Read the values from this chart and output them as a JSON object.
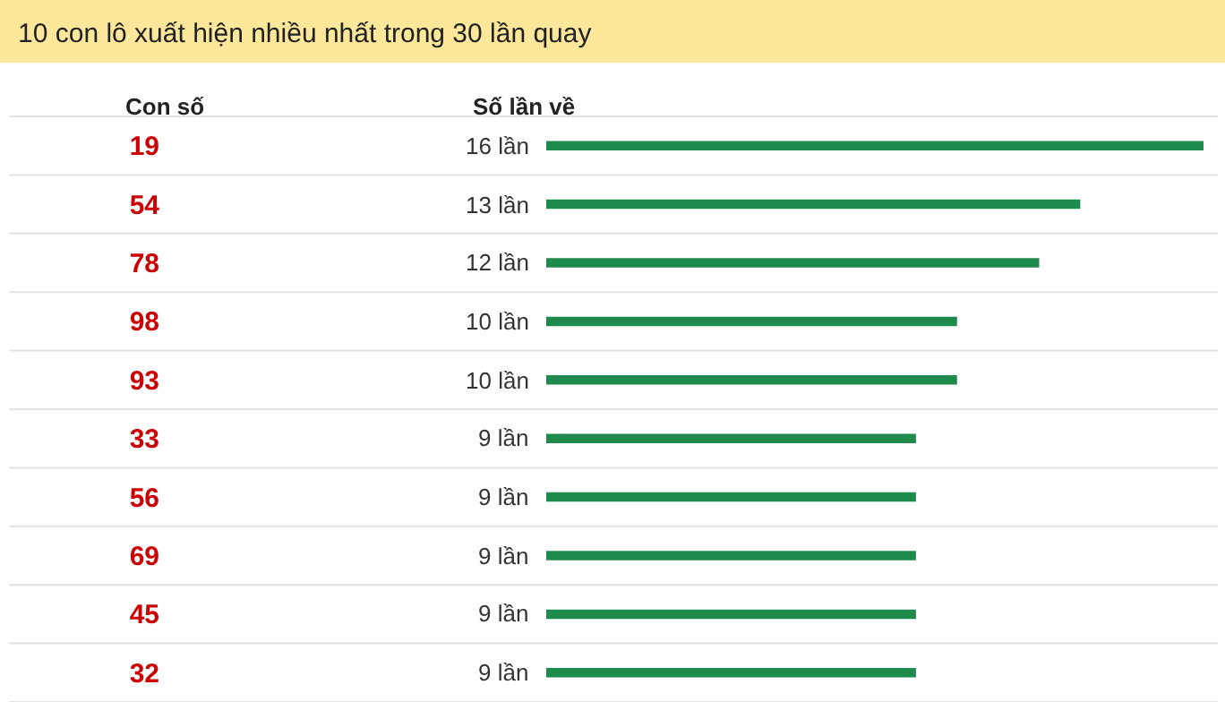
{
  "chart_data": {
    "type": "bar",
    "orientation": "horizontal",
    "title": "10 con lô xuất hiện nhiều nhất trong 30 lần quay",
    "annotations": [
      "Con số",
      "Số lần về"
    ],
    "categories": [
      "19",
      "54",
      "78",
      "98",
      "93",
      "33",
      "56",
      "69",
      "45",
      "32"
    ],
    "values": [
      16,
      13,
      12,
      10,
      10,
      9,
      9,
      9,
      9,
      9
    ],
    "value_labels": [
      "16 lần",
      "13 lần",
      "12 lần",
      "10 lần",
      "10 lần",
      "9 lần",
      "9 lần",
      "9 lần",
      "9 lần",
      "9 lần"
    ],
    "color": "#1e8a4c",
    "tick_labels": "y",
    "grid": false
  }
}
